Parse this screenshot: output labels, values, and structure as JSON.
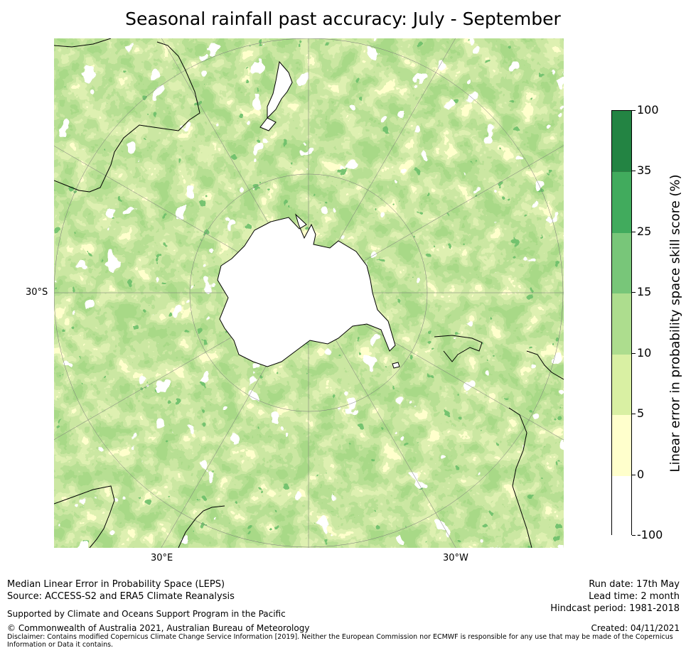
{
  "title": "Seasonal rainfall past accuracy: July - September",
  "map": {
    "lat_label": "30°S",
    "lon_labels": [
      "30°E",
      "30°W"
    ]
  },
  "colorbar": {
    "title": "Linear error in probability space skill score (%)",
    "bins": [
      {
        "from": "-100",
        "to": "0",
        "color": "#ffffff"
      },
      {
        "from": "0",
        "to": "5",
        "color": "#ffffcc"
      },
      {
        "from": "5",
        "to": "10",
        "color": "#d9f0a3"
      },
      {
        "from": "10",
        "to": "15",
        "color": "#addd8e"
      },
      {
        "from": "15",
        "to": "25",
        "color": "#78c679"
      },
      {
        "from": "25",
        "to": "35",
        "color": "#41ab5d"
      },
      {
        "from": "35",
        "to": "100",
        "color": "#238443"
      }
    ],
    "tick_labels": [
      "-100",
      "0",
      "5",
      "10",
      "15",
      "25",
      "35",
      "100"
    ]
  },
  "footer": {
    "left_line1": "Median Linear Error in Probability Space (LEPS)",
    "left_line2": "Source: ACCESS-S2 and ERA5 Climate Reanalysis",
    "supported": "Supported by Climate and Oceans Support Program in the Pacific",
    "copyright": "© Commonwealth of Australia 2021, Australian Bureau of Meteorology",
    "run_date": "Run date: 17th May",
    "lead_time": "Lead time: 2 month",
    "hindcast": "Hindcast period: 1981-2018",
    "created": "Created: 04/11/2021",
    "disclaimer": "Disclaimer: Contains modified Copernicus Climate Change Service Information [2019]. Neither the European Commission nor ECMWF is responsible for any use that may be made of the Copernicus Information or Data it contains."
  }
}
